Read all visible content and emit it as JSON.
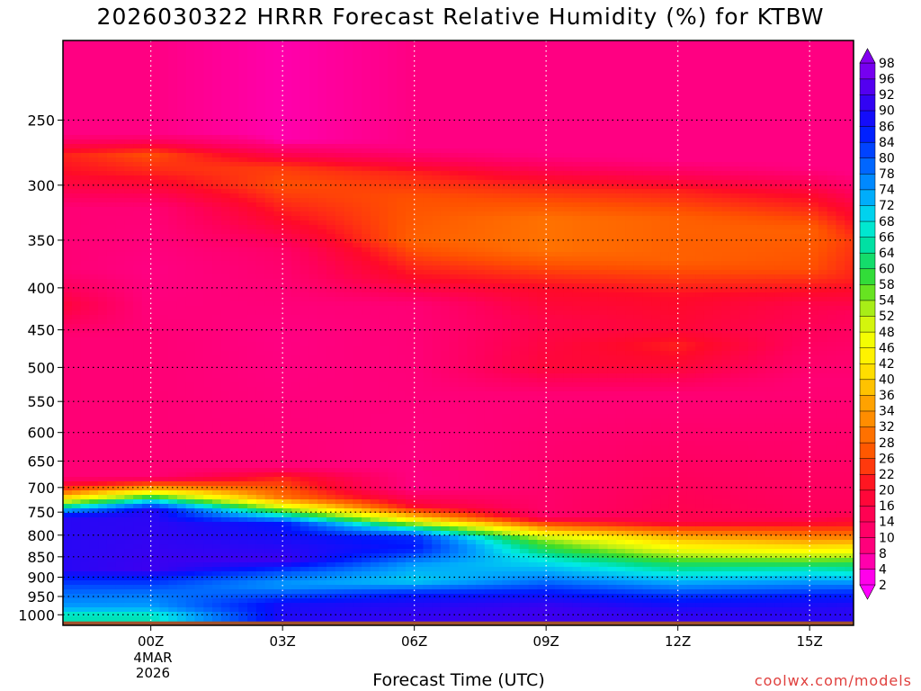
{
  "chart_data": {
    "type": "heatmap",
    "title": "2026030322 HRRR Forecast Relative Humidity (%) for KTBW",
    "xlabel": "Forecast Time (UTC)",
    "ylabel": "",
    "x_ticks": [
      "00Z",
      "03Z",
      "06Z",
      "09Z",
      "12Z",
      "15Z"
    ],
    "x_tick_hours": [
      0,
      3,
      6,
      9,
      12,
      15
    ],
    "x_range_hours": [
      -2,
      16
    ],
    "date_label": [
      "4MAR",
      "2026"
    ],
    "y_ticks": [
      250,
      300,
      350,
      400,
      450,
      500,
      550,
      600,
      650,
      700,
      750,
      800,
      850,
      900,
      950,
      1000
    ],
    "y_range_hpa": [
      200,
      1030
    ],
    "y_scale": "log-pressure (inverted)",
    "grid": true,
    "colorbar": {
      "levels": [
        2,
        4,
        8,
        10,
        14,
        16,
        20,
        22,
        26,
        28,
        32,
        34,
        36,
        40,
        42,
        46,
        48,
        52,
        54,
        58,
        60,
        64,
        66,
        68,
        72,
        74,
        78,
        80,
        84,
        86,
        90,
        92,
        96,
        98
      ],
      "placement": "right",
      "extend": "both"
    },
    "profiles": [
      {
        "hour": -2,
        "values": [
          [
            200,
            8
          ],
          [
            260,
            8
          ],
          [
            275,
            22
          ],
          [
            290,
            20
          ],
          [
            320,
            10
          ],
          [
            380,
            10
          ],
          [
            420,
            18
          ],
          [
            460,
            10
          ],
          [
            680,
            10
          ],
          [
            700,
            22
          ],
          [
            720,
            40
          ],
          [
            740,
            66
          ],
          [
            760,
            90
          ],
          [
            880,
            90
          ],
          [
            900,
            86
          ],
          [
            930,
            80
          ],
          [
            980,
            74
          ],
          [
            1000,
            66
          ],
          [
            1030,
            66
          ]
        ]
      },
      {
        "hour": 0,
        "values": [
          [
            200,
            8
          ],
          [
            260,
            8
          ],
          [
            275,
            26
          ],
          [
            290,
            22
          ],
          [
            320,
            10
          ],
          [
            380,
            8
          ],
          [
            460,
            10
          ],
          [
            680,
            10
          ],
          [
            690,
            22
          ],
          [
            705,
            40
          ],
          [
            725,
            68
          ],
          [
            745,
            90
          ],
          [
            880,
            92
          ],
          [
            900,
            86
          ],
          [
            940,
            78
          ],
          [
            980,
            74
          ],
          [
            1000,
            66
          ],
          [
            1030,
            66
          ]
        ]
      },
      {
        "hour": 3,
        "values": [
          [
            200,
            6
          ],
          [
            265,
            6
          ],
          [
            285,
            24
          ],
          [
            300,
            26
          ],
          [
            330,
            20
          ],
          [
            360,
            12
          ],
          [
            400,
            10
          ],
          [
            460,
            8
          ],
          [
            660,
            10
          ],
          [
            680,
            22
          ],
          [
            720,
            30
          ],
          [
            750,
            60
          ],
          [
            775,
            86
          ],
          [
            860,
            92
          ],
          [
            890,
            80
          ],
          [
            920,
            74
          ],
          [
            970,
            88
          ],
          [
            1030,
            90
          ]
        ]
      },
      {
        "hour": 6,
        "values": [
          [
            200,
            8
          ],
          [
            270,
            8
          ],
          [
            290,
            22
          ],
          [
            310,
            26
          ],
          [
            350,
            28
          ],
          [
            390,
            20
          ],
          [
            420,
            10
          ],
          [
            700,
            8
          ],
          [
            740,
            20
          ],
          [
            765,
            42
          ],
          [
            785,
            66
          ],
          [
            805,
            84
          ],
          [
            830,
            86
          ],
          [
            870,
            74
          ],
          [
            910,
            70
          ],
          [
            945,
            86
          ],
          [
            980,
            90
          ],
          [
            1030,
            92
          ]
        ]
      },
      {
        "hour": 9,
        "values": [
          [
            200,
            8
          ],
          [
            275,
            8
          ],
          [
            300,
            22
          ],
          [
            330,
            30
          ],
          [
            360,
            30
          ],
          [
            400,
            20
          ],
          [
            440,
            16
          ],
          [
            500,
            18
          ],
          [
            540,
            10
          ],
          [
            760,
            12
          ],
          [
            780,
            30
          ],
          [
            810,
            54
          ],
          [
            850,
            66
          ],
          [
            880,
            72
          ],
          [
            910,
            78
          ],
          [
            940,
            86
          ],
          [
            980,
            92
          ],
          [
            1030,
            92
          ]
        ]
      },
      {
        "hour": 12,
        "values": [
          [
            200,
            8
          ],
          [
            280,
            8
          ],
          [
            305,
            22
          ],
          [
            330,
            28
          ],
          [
            370,
            28
          ],
          [
            410,
            20
          ],
          [
            450,
            18
          ],
          [
            470,
            22
          ],
          [
            500,
            18
          ],
          [
            540,
            10
          ],
          [
            770,
            16
          ],
          [
            800,
            34
          ],
          [
            830,
            46
          ],
          [
            870,
            62
          ],
          [
            910,
            72
          ],
          [
            950,
            84
          ],
          [
            990,
            90
          ],
          [
            1030,
            92
          ]
        ]
      },
      {
        "hour": 15,
        "values": [
          [
            200,
            8
          ],
          [
            285,
            8
          ],
          [
            310,
            20
          ],
          [
            340,
            28
          ],
          [
            380,
            26
          ],
          [
            420,
            16
          ],
          [
            520,
            10
          ],
          [
            760,
            14
          ],
          [
            790,
            26
          ],
          [
            820,
            38
          ],
          [
            850,
            52
          ],
          [
            880,
            66
          ],
          [
            910,
            74
          ],
          [
            950,
            86
          ],
          [
            990,
            90
          ],
          [
            1030,
            90
          ]
        ]
      },
      {
        "hour": 16,
        "values": [
          [
            200,
            8
          ],
          [
            290,
            8
          ],
          [
            320,
            18
          ],
          [
            350,
            24
          ],
          [
            390,
            22
          ],
          [
            430,
            14
          ],
          [
            520,
            10
          ],
          [
            750,
            14
          ],
          [
            780,
            22
          ],
          [
            810,
            34
          ],
          [
            840,
            48
          ],
          [
            870,
            62
          ],
          [
            900,
            70
          ],
          [
            940,
            84
          ],
          [
            980,
            90
          ],
          [
            1030,
            90
          ]
        ]
      }
    ],
    "colors": {
      "ground": "#a0522d",
      "grid": "#000000",
      "credit": "#e0403e"
    }
  },
  "credit": "coolwx.com/models"
}
